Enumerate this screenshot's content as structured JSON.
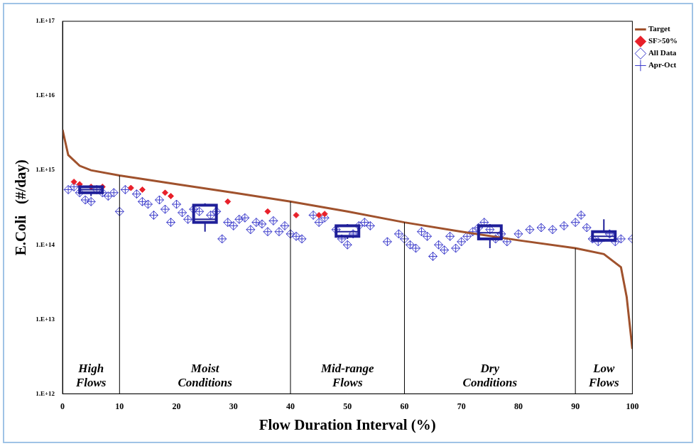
{
  "chart_data": {
    "type": "scatter",
    "x_label": "Flow Duration Interval (%)",
    "y_label": "E.Coli   (#/day)",
    "xlim": [
      0,
      100
    ],
    "xticks": [
      0,
      10,
      20,
      30,
      40,
      50,
      60,
      70,
      80,
      90,
      100
    ],
    "ylim": [
      1000000000000.0,
      1e+17
    ],
    "yticks": [
      {
        "value": 1000000000000.0,
        "label": "1.E+12"
      },
      {
        "value": 10000000000000.0,
        "label": "1.E+13"
      },
      {
        "value": 100000000000000.0,
        "label": "1.E+14"
      },
      {
        "value": 1000000000000000.0,
        "label": "1.E+15"
      },
      {
        "value": 1e+16,
        "label": "1.E+16"
      },
      {
        "value": 1e+17,
        "label": "1.E+17"
      }
    ],
    "log": "y",
    "grid": false,
    "legend": "right",
    "zones": [
      {
        "label": "High Flows",
        "from": 0,
        "to": 10
      },
      {
        "label": "Moist Conditions",
        "from": 10,
        "to": 40
      },
      {
        "label": "Mid-range Flows",
        "from": 40,
        "to": 60
      },
      {
        "label": "Dry Conditions",
        "from": 60,
        "to": 90
      },
      {
        "label": "Low Flows",
        "from": 90,
        "to": 100
      }
    ],
    "series": [
      {
        "name": "Target",
        "type": "line",
        "color": "#a0522d",
        "line_style": "solid",
        "x": [
          0,
          1,
          3,
          5,
          10,
          20,
          30,
          40,
          50,
          60,
          70,
          80,
          90,
          95,
          98,
          99,
          100
        ],
        "values": [
          3500000000000000.0,
          1600000000000000.0,
          1150000000000000.0,
          1000000000000000.0,
          850000000000000.0,
          650000000000000.0,
          500000000000000.0,
          380000000000000.0,
          280000000000000.0,
          200000000000000.0,
          150000000000000.0,
          115000000000000.0,
          90000000000000.0,
          75000000000000.0,
          50000000000000.0,
          20000000000000.0,
          4000000000000.0
        ]
      },
      {
        "name": "All Data",
        "type": "scatter",
        "color": "#3a3acb",
        "marker": "diamond",
        "x": [
          1,
          2,
          3,
          4,
          5,
          6,
          7,
          8,
          9,
          10,
          11,
          13,
          14,
          15,
          16,
          17,
          18,
          19,
          20,
          21,
          22,
          23,
          24,
          26,
          27,
          28,
          29,
          30,
          31,
          32,
          33,
          34,
          35,
          36,
          37,
          38,
          39,
          40,
          41,
          42,
          44,
          45,
          46,
          48,
          49,
          50,
          51,
          52,
          53,
          54,
          57,
          59,
          60,
          61,
          62,
          63,
          64,
          65,
          66,
          67,
          68,
          69,
          70,
          71,
          72,
          73,
          74,
          75,
          76,
          77,
          78,
          80,
          82,
          84,
          86,
          88,
          90,
          91,
          92,
          93,
          94,
          96,
          97,
          98,
          100
        ],
        "values": [
          550000000000000.0,
          600000000000000.0,
          500000000000000.0,
          400000000000000.0,
          380000000000000.0,
          550000000000000.0,
          500000000000000.0,
          450000000000000.0,
          500000000000000.0,
          280000000000000.0,
          550000000000000.0,
          480000000000000.0,
          380000000000000.0,
          350000000000000.0,
          250000000000000.0,
          400000000000000.0,
          300000000000000.0,
          200000000000000.0,
          350000000000000.0,
          270000000000000.0,
          220000000000000.0,
          300000000000000.0,
          280000000000000.0,
          250000000000000.0,
          280000000000000.0,
          120000000000000.0,
          200000000000000.0,
          180000000000000.0,
          220000000000000.0,
          230000000000000.0,
          160000000000000.0,
          200000000000000.0,
          190000000000000.0,
          150000000000000.0,
          210000000000000.0,
          150000000000000.0,
          180000000000000.0,
          140000000000000.0,
          130000000000000.0,
          120000000000000.0,
          250000000000000.0,
          200000000000000.0,
          230000000000000.0,
          160000000000000.0,
          120000000000000.0,
          100000000000000.0,
          140000000000000.0,
          180000000000000.0,
          200000000000000.0,
          180000000000000.0,
          110000000000000.0,
          140000000000000.0,
          120000000000000.0,
          100000000000000.0,
          90000000000000.0,
          150000000000000.0,
          130000000000000.0,
          70000000000000.0,
          100000000000000.0,
          85000000000000.0,
          130000000000000.0,
          90000000000000.0,
          110000000000000.0,
          130000000000000.0,
          150000000000000.0,
          170000000000000.0,
          200000000000000.0,
          160000000000000.0,
          120000000000000.0,
          140000000000000.0,
          110000000000000.0,
          140000000000000.0,
          160000000000000.0,
          170000000000000.0,
          160000000000000.0,
          180000000000000.0,
          200000000000000.0,
          250000000000000.0,
          170000000000000.0,
          120000000000000.0,
          110000000000000.0,
          140000000000000.0,
          110000000000000.0,
          120000000000000.0,
          120000000000000.0
        ]
      },
      {
        "name": "Apr-Oct",
        "type": "scatter",
        "color": "#3a3acb",
        "marker": "cross",
        "x": [
          1,
          2,
          3,
          4,
          5,
          6,
          7,
          8,
          9,
          10,
          11,
          13,
          14,
          15,
          16,
          17,
          18,
          19,
          20,
          21,
          22,
          23,
          24,
          26,
          27,
          28,
          29,
          30,
          31,
          32,
          33,
          34,
          35,
          36,
          37,
          38,
          39,
          40,
          41,
          42,
          44,
          45,
          46,
          48,
          49,
          50,
          51,
          52,
          53,
          54,
          57,
          59,
          60,
          61,
          62,
          63,
          64,
          65,
          66,
          67,
          68,
          69,
          70,
          71,
          72,
          73,
          74,
          75,
          76,
          77,
          78,
          80,
          82,
          84,
          86,
          88,
          90,
          91,
          92,
          93,
          94,
          96,
          97,
          98,
          100
        ],
        "values": [
          550000000000000.0,
          600000000000000.0,
          500000000000000.0,
          400000000000000.0,
          380000000000000.0,
          550000000000000.0,
          500000000000000.0,
          450000000000000.0,
          500000000000000.0,
          280000000000000.0,
          550000000000000.0,
          480000000000000.0,
          380000000000000.0,
          350000000000000.0,
          250000000000000.0,
          400000000000000.0,
          300000000000000.0,
          200000000000000.0,
          350000000000000.0,
          270000000000000.0,
          220000000000000.0,
          300000000000000.0,
          280000000000000.0,
          250000000000000.0,
          280000000000000.0,
          120000000000000.0,
          200000000000000.0,
          180000000000000.0,
          220000000000000.0,
          230000000000000.0,
          160000000000000.0,
          200000000000000.0,
          190000000000000.0,
          150000000000000.0,
          210000000000000.0,
          150000000000000.0,
          180000000000000.0,
          140000000000000.0,
          130000000000000.0,
          120000000000000.0,
          250000000000000.0,
          200000000000000.0,
          230000000000000.0,
          160000000000000.0,
          120000000000000.0,
          100000000000000.0,
          140000000000000.0,
          180000000000000.0,
          200000000000000.0,
          180000000000000.0,
          110000000000000.0,
          140000000000000.0,
          120000000000000.0,
          100000000000000.0,
          90000000000000.0,
          150000000000000.0,
          130000000000000.0,
          70000000000000.0,
          100000000000000.0,
          85000000000000.0,
          130000000000000.0,
          90000000000000.0,
          110000000000000.0,
          130000000000000.0,
          150000000000000.0,
          170000000000000.0,
          200000000000000.0,
          160000000000000.0,
          120000000000000.0,
          140000000000000.0,
          110000000000000.0,
          140000000000000.0,
          160000000000000.0,
          170000000000000.0,
          160000000000000.0,
          180000000000000.0,
          200000000000000.0,
          250000000000000.0,
          170000000000000.0,
          120000000000000.0,
          110000000000000.0,
          140000000000000.0,
          110000000000000.0,
          120000000000000.0,
          120000000000000.0
        ]
      },
      {
        "name": "SF>50%",
        "type": "scatter",
        "color": "#e8202a",
        "marker": "solid-diamond",
        "x": [
          2,
          3,
          5,
          7,
          12,
          14,
          18,
          19,
          29,
          36,
          41,
          45,
          46
        ],
        "values": [
          700000000000000.0,
          650000000000000.0,
          600000000000000.0,
          600000000000000.0,
          580000000000000.0,
          550000000000000.0,
          500000000000000.0,
          450000000000000.0,
          380000000000000.0,
          280000000000000.0,
          250000000000000.0,
          250000000000000.0,
          260000000000000.0
        ]
      }
    ],
    "boxes": {
      "color": "#1f1f99",
      "items": [
        {
          "x": 5,
          "low": 450000000000000.0,
          "q1": 500000000000000.0,
          "median": 550000000000000.0,
          "q3": 600000000000000.0,
          "high": 620000000000000.0
        },
        {
          "x": 25,
          "low": 150000000000000.0,
          "q1": 200000000000000.0,
          "median": 220000000000000.0,
          "q3": 340000000000000.0,
          "high": 360000000000000.0
        },
        {
          "x": 50,
          "low": 120000000000000.0,
          "q1": 130000000000000.0,
          "median": 150000000000000.0,
          "q3": 180000000000000.0,
          "high": 190000000000000.0
        },
        {
          "x": 75,
          "low": 90000000000000.0,
          "q1": 120000000000000.0,
          "median": 145000000000000.0,
          "q3": 180000000000000.0,
          "high": 190000000000000.0
        },
        {
          "x": 95,
          "low": 110000000000000.0,
          "q1": 115000000000000.0,
          "median": 130000000000000.0,
          "q3": 150000000000000.0,
          "high": 220000000000000.0
        }
      ]
    }
  }
}
